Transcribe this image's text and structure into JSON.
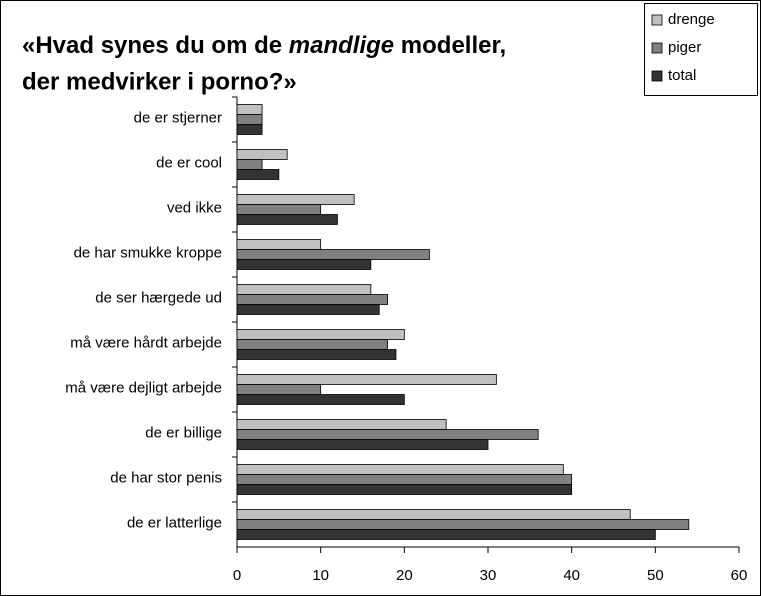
{
  "chart_data": {
    "type": "barh",
    "title": [
      "«Hvad synes du om de ",
      "mandlige",
      " modeller,",
      "der medvirker i porno?»"
    ],
    "categories": [
      "de er stjerner",
      "de er cool",
      "ved ikke",
      "de har smukke kroppe",
      "de ser hærgede ud",
      "må være hårdt arbejde",
      "må være dejligt arbejde",
      "de er billige",
      "de har stor penis",
      "de er latterlige"
    ],
    "series": [
      {
        "name": "drenge",
        "color": "#c0c0c0",
        "values": [
          3,
          6,
          14,
          10,
          16,
          20,
          31,
          25,
          39,
          47
        ]
      },
      {
        "name": "piger",
        "color": "#808080",
        "values": [
          3,
          3,
          10,
          23,
          18,
          18,
          10,
          36,
          40,
          54
        ]
      },
      {
        "name": "total",
        "color": "#333333",
        "values": [
          3,
          5,
          12,
          16,
          17,
          19,
          20,
          30,
          40,
          50
        ]
      }
    ],
    "xlim": [
      0,
      60
    ],
    "xticks": [
      0,
      10,
      20,
      30,
      40,
      50,
      60
    ],
    "grid": false,
    "legend": "top-right"
  }
}
